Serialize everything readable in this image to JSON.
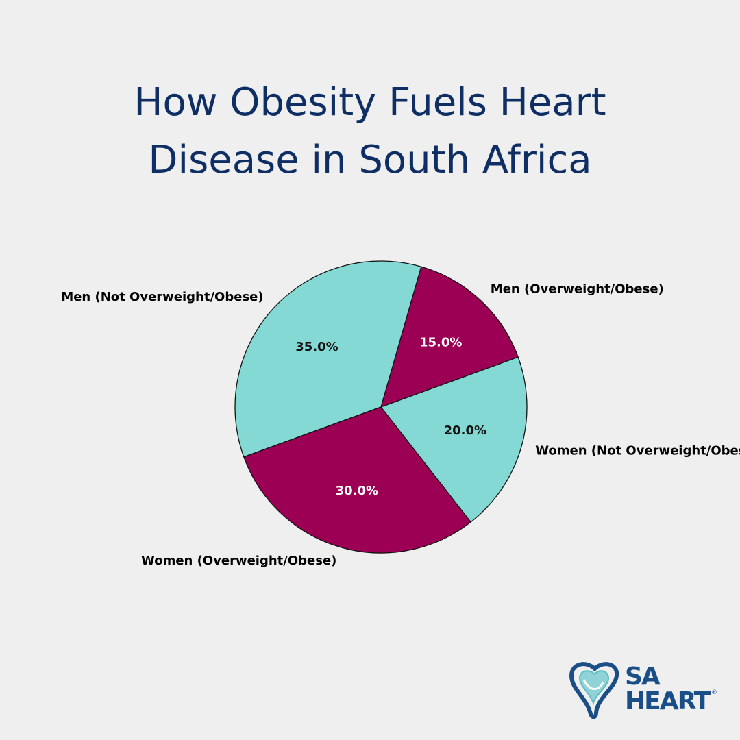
{
  "header": {
    "title_line1": "How Obesity Fuels Heart",
    "title_line2": "Disease in South Africa"
  },
  "chart_data": {
    "type": "pie",
    "title": "How Obesity Fuels Heart Disease in South Africa",
    "start_angle_deg": 20,
    "direction": "counterclockwise",
    "slices": [
      {
        "label": "Men (Overweight/Obese)",
        "value": 15.0,
        "pct_text": "15.0%",
        "color": "#9c0055",
        "pct_color": "#ffffff"
      },
      {
        "label": "Men (Not Overweight/Obese)",
        "value": 35.0,
        "pct_text": "35.0%",
        "color": "#84d9d4",
        "pct_color": "#111111"
      },
      {
        "label": "Women (Overweight/Obese)",
        "value": 30.0,
        "pct_text": "30.0%",
        "color": "#9c0055",
        "pct_color": "#ffffff"
      },
      {
        "label": "Women (Not Overweight/Obese)",
        "value": 20.0,
        "pct_text": "20.0%",
        "color": "#84d9d4",
        "pct_color": "#111111"
      }
    ]
  },
  "logo": {
    "line1": "SA",
    "line2": "HEART",
    "reg": "®",
    "color": "#1a4e86"
  }
}
